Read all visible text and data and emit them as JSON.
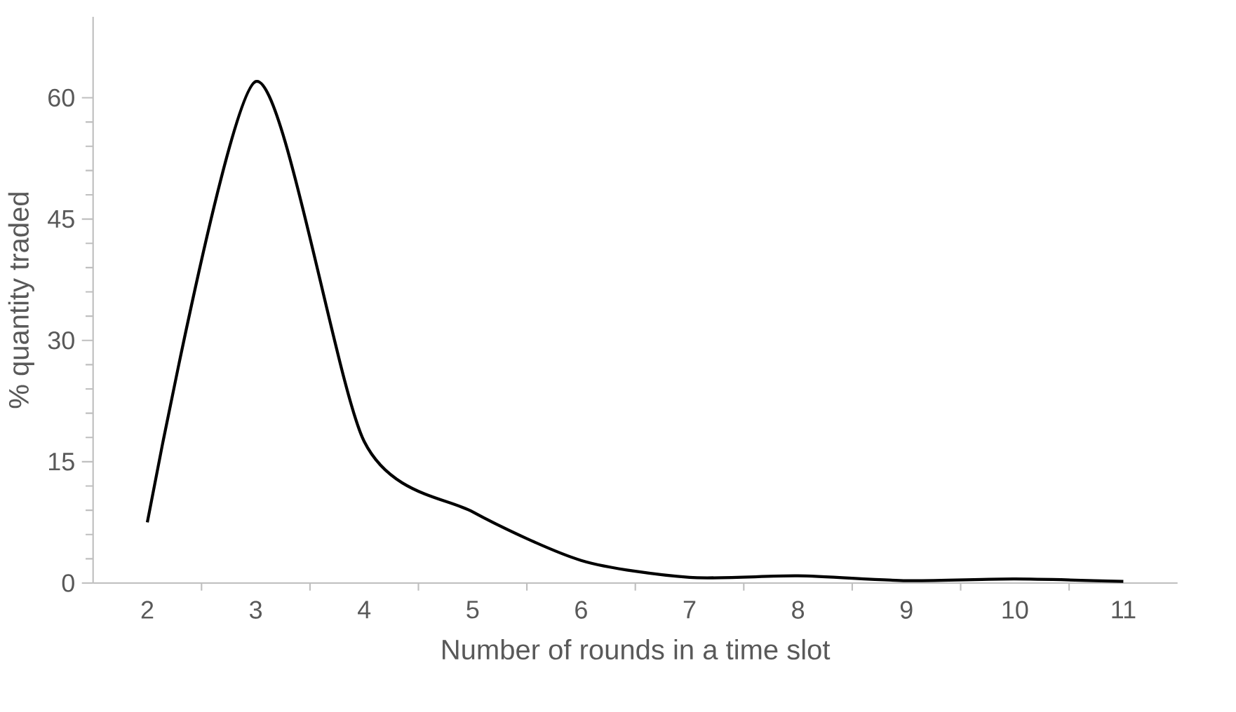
{
  "chart_data": {
    "type": "line",
    "xlabel": "Number of rounds in a time slot",
    "ylabel": "% quantity traded",
    "categories": [
      "2",
      "3",
      "4",
      "5",
      "6",
      "7",
      "8",
      "9",
      "10",
      "11"
    ],
    "series": [
      {
        "color": "#000000",
        "values": [
          7.5,
          62,
          17.5,
          8.8,
          2.8,
          0.7,
          0.9,
          0.3,
          0.5,
          0.2
        ]
      }
    ],
    "ylim": [
      0,
      70
    ],
    "yticks": [
      0,
      15,
      30,
      45,
      60
    ],
    "grid": false,
    "marker": "none",
    "line_style": "solid"
  }
}
